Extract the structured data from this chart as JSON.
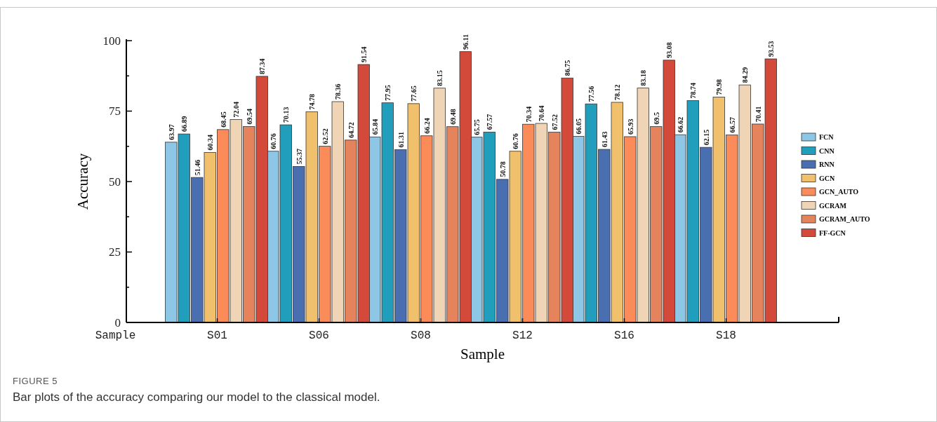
{
  "chart_data": {
    "type": "bar",
    "xlabel": "Sample",
    "ylabel": "Accuracy",
    "categories": [
      "Sample",
      "S01",
      "S06",
      "S08",
      "S12",
      "S16",
      "S18"
    ],
    "series": [
      {
        "name": "FCN",
        "color": "#8ec6e6",
        "values": [
          null,
          63.97,
          60.76,
          65.84,
          65.75,
          66.05,
          66.62
        ]
      },
      {
        "name": "CNN",
        "color": "#219ebc",
        "values": [
          null,
          66.89,
          70.13,
          77.95,
          67.57,
          77.56,
          78.74
        ]
      },
      {
        "name": "RNN",
        "color": "#4a6fb0",
        "values": [
          null,
          51.46,
          55.37,
          61.31,
          50.78,
          61.43,
          62.15
        ]
      },
      {
        "name": "GCN",
        "color": "#f0c06c",
        "values": [
          null,
          60.34,
          74.78,
          77.65,
          60.76,
          78.12,
          79.98
        ]
      },
      {
        "name": "GCN_AUTO",
        "color": "#fb8b58",
        "values": [
          null,
          68.45,
          62.52,
          66.24,
          70.34,
          65.93,
          66.57
        ]
      },
      {
        "name": "GCRAM",
        "color": "#efd5b5",
        "values": [
          null,
          72.04,
          78.36,
          83.15,
          70.64,
          83.18,
          84.29
        ]
      },
      {
        "name": "GCRAM_AUTO",
        "color": "#e5835c",
        "values": [
          null,
          69.54,
          64.72,
          69.48,
          67.52,
          69.5,
          70.41
        ]
      },
      {
        "name": "FF-GCN",
        "color": "#d3493a",
        "values": [
          null,
          87.34,
          91.54,
          96.11,
          86.75,
          93.08,
          93.53
        ]
      }
    ],
    "ylim": [
      0,
      100
    ],
    "yticks": [
      0,
      {
        "value": 12.5,
        "label": null
      },
      25,
      {
        "value": 37.5,
        "label": null
      },
      50,
      {
        "value": 62.5,
        "label": null
      },
      75,
      {
        "value": 87.5,
        "label": null
      },
      100
    ],
    "data_labels": true,
    "legend": "right",
    "grid": false,
    "annotations": [
      "FIGURE 5",
      "Bar plots of the accuracy comparing our model to the classical model."
    ]
  }
}
